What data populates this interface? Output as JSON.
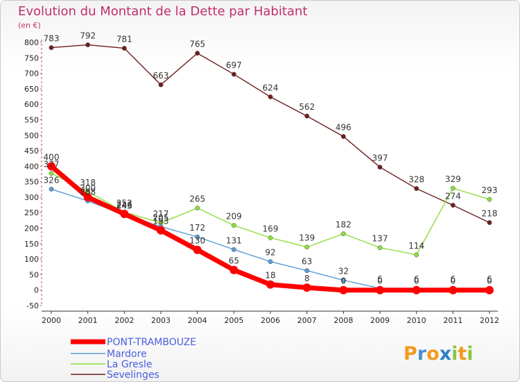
{
  "header": {
    "title": "Evolution du Montant de la Dette par Habitant",
    "subtitle": "(en €)"
  },
  "logo": {
    "text": "Proxiti"
  },
  "chart_data": {
    "type": "line",
    "x": [
      "2000",
      "2001",
      "2002",
      "2003",
      "2004",
      "2005",
      "2006",
      "2007",
      "2008",
      "2009",
      "2010",
      "2011",
      "2012"
    ],
    "ylim": [
      -50,
      800
    ],
    "yticks": [
      -50,
      0,
      50,
      100,
      150,
      200,
      250,
      300,
      350,
      400,
      450,
      500,
      550,
      600,
      650,
      700,
      750,
      800
    ],
    "grid": false,
    "legend": "bottom-left",
    "series": [
      {
        "name": "PONT-TRAMBOUZE",
        "color": "#ff0000",
        "values": [
          400,
          300,
          246,
          193,
          130,
          65,
          18,
          8,
          0,
          0,
          0,
          0,
          0
        ]
      },
      {
        "name": "Mardore",
        "color": "#5b9bd5",
        "values": [
          326,
          288,
          243,
          205,
          172,
          131,
          92,
          63,
          32,
          6,
          6,
          6,
          6
        ]
      },
      {
        "name": "La Gresle",
        "color": "#8fdc3e",
        "values": [
          377,
          318,
          252,
          217,
          265,
          209,
          169,
          139,
          182,
          137,
          114,
          329,
          293
        ]
      },
      {
        "name": "Sevelinges",
        "color": "#6e1e1e",
        "values": [
          783,
          792,
          781,
          663,
          765,
          697,
          624,
          562,
          496,
          397,
          328,
          274,
          218
        ]
      }
    ],
    "data_labels": {
      "PONT-TRAMBOUZE": [
        "400",
        "300",
        "246",
        "193",
        "130",
        "65",
        "18",
        "8",
        "0",
        "0",
        "0",
        "0",
        "0"
      ],
      "Mardore": [
        "326",
        "288",
        "243",
        "205",
        "172",
        "131",
        "92",
        "63",
        "32",
        "6",
        "6",
        "6",
        "6"
      ],
      "La Gresle": [
        "377",
        "318",
        "252",
        "217",
        "265",
        "209",
        "169",
        "139",
        "182",
        "137",
        "114",
        "329",
        "293"
      ],
      "Sevelinges": [
        "783",
        "792",
        "781",
        "663",
        "765",
        "697",
        "624",
        "562",
        "496",
        "397",
        "328",
        "274",
        "218"
      ]
    }
  }
}
